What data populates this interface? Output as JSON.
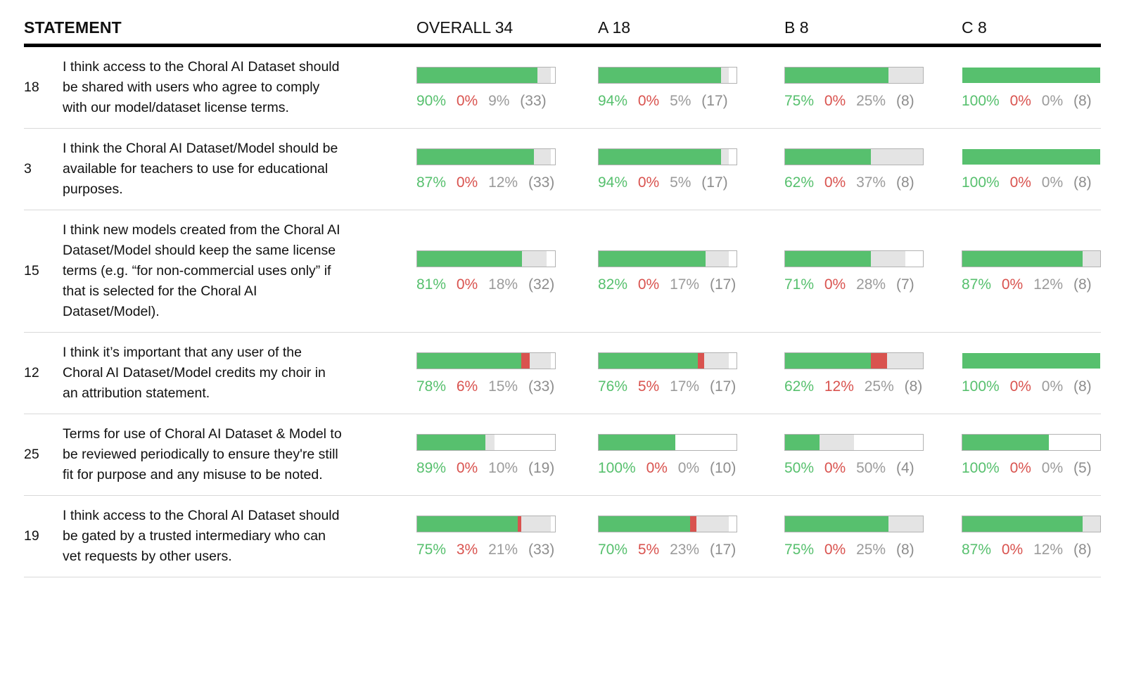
{
  "header": {
    "statement_label": "STATEMENT"
  },
  "colors": {
    "agree": "#57c06e",
    "disagree": "#d9534f",
    "neutral": "#e4e4e4",
    "bar_border": "#b2b2b2",
    "pct_neutral": "#9b9b9b",
    "count": "#8d8d8d",
    "divider": "#d9d9d9",
    "ink": "#111111",
    "rule": "#000000"
  },
  "chart_data": {
    "type": "table",
    "legend_note": "Each cell: stacked bar of agree(green)/disagree(red)/neutral(gray); bar filled length = responses/group total; labels show agree% disagree% neutral% (responses)",
    "columns": [
      {
        "label": "OVERALL 34",
        "group": "OVERALL",
        "n": 34
      },
      {
        "label": "A 18",
        "group": "A",
        "n": 18
      },
      {
        "label": "B 8",
        "group": "B",
        "n": 8
      },
      {
        "label": "C 8",
        "group": "C",
        "n": 8
      }
    ],
    "rows": [
      {
        "id": "18",
        "statement": "I think access to the Choral AI Dataset should be shared with users who agree to comply with our model/dataset license terms.",
        "results": [
          {
            "agree_pct": 90,
            "disagree_pct": 0,
            "neutral_pct": 9,
            "responses": 33
          },
          {
            "agree_pct": 94,
            "disagree_pct": 0,
            "neutral_pct": 5,
            "responses": 17
          },
          {
            "agree_pct": 75,
            "disagree_pct": 0,
            "neutral_pct": 25,
            "responses": 8
          },
          {
            "agree_pct": 100,
            "disagree_pct": 0,
            "neutral_pct": 0,
            "responses": 8
          }
        ]
      },
      {
        "id": "3",
        "statement": "I think the Choral AI Dataset/Model should be available for teachers to use for educational purposes.",
        "results": [
          {
            "agree_pct": 87,
            "disagree_pct": 0,
            "neutral_pct": 12,
            "responses": 33
          },
          {
            "agree_pct": 94,
            "disagree_pct": 0,
            "neutral_pct": 5,
            "responses": 17
          },
          {
            "agree_pct": 62,
            "disagree_pct": 0,
            "neutral_pct": 37,
            "responses": 8
          },
          {
            "agree_pct": 100,
            "disagree_pct": 0,
            "neutral_pct": 0,
            "responses": 8
          }
        ]
      },
      {
        "id": "15",
        "statement": "I think new models created from the Choral AI Dataset/Model should keep the same license terms (e.g. “for non-commercial uses only” if that is selected for the Choral AI Dataset/Model).",
        "results": [
          {
            "agree_pct": 81,
            "disagree_pct": 0,
            "neutral_pct": 18,
            "responses": 32
          },
          {
            "agree_pct": 82,
            "disagree_pct": 0,
            "neutral_pct": 17,
            "responses": 17
          },
          {
            "agree_pct": 71,
            "disagree_pct": 0,
            "neutral_pct": 28,
            "responses": 7
          },
          {
            "agree_pct": 87,
            "disagree_pct": 0,
            "neutral_pct": 12,
            "responses": 8
          }
        ]
      },
      {
        "id": "12",
        "statement": "I think it’s important that any user of the Choral AI Dataset/Model credits my choir in an attribution statement.",
        "results": [
          {
            "agree_pct": 78,
            "disagree_pct": 6,
            "neutral_pct": 15,
            "responses": 33
          },
          {
            "agree_pct": 76,
            "disagree_pct": 5,
            "neutral_pct": 17,
            "responses": 17
          },
          {
            "agree_pct": 62,
            "disagree_pct": 12,
            "neutral_pct": 25,
            "responses": 8
          },
          {
            "agree_pct": 100,
            "disagree_pct": 0,
            "neutral_pct": 0,
            "responses": 8
          }
        ]
      },
      {
        "id": "25",
        "statement": "Terms for use of Choral AI Dataset & Model to be reviewed periodically to ensure they're still fit for purpose and any misuse to be noted.",
        "results": [
          {
            "agree_pct": 89,
            "disagree_pct": 0,
            "neutral_pct": 10,
            "responses": 19
          },
          {
            "agree_pct": 100,
            "disagree_pct": 0,
            "neutral_pct": 0,
            "responses": 10
          },
          {
            "agree_pct": 50,
            "disagree_pct": 0,
            "neutral_pct": 50,
            "responses": 4
          },
          {
            "agree_pct": 100,
            "disagree_pct": 0,
            "neutral_pct": 0,
            "responses": 5
          }
        ]
      },
      {
        "id": "19",
        "statement": "I think access to the Choral AI Dataset should be gated by a trusted intermediary who can vet requests by other users.",
        "results": [
          {
            "agree_pct": 75,
            "disagree_pct": 3,
            "neutral_pct": 21,
            "responses": 33
          },
          {
            "agree_pct": 70,
            "disagree_pct": 5,
            "neutral_pct": 23,
            "responses": 17
          },
          {
            "agree_pct": 75,
            "disagree_pct": 0,
            "neutral_pct": 25,
            "responses": 8
          },
          {
            "agree_pct": 87,
            "disagree_pct": 0,
            "neutral_pct": 12,
            "responses": 8
          }
        ]
      }
    ]
  }
}
